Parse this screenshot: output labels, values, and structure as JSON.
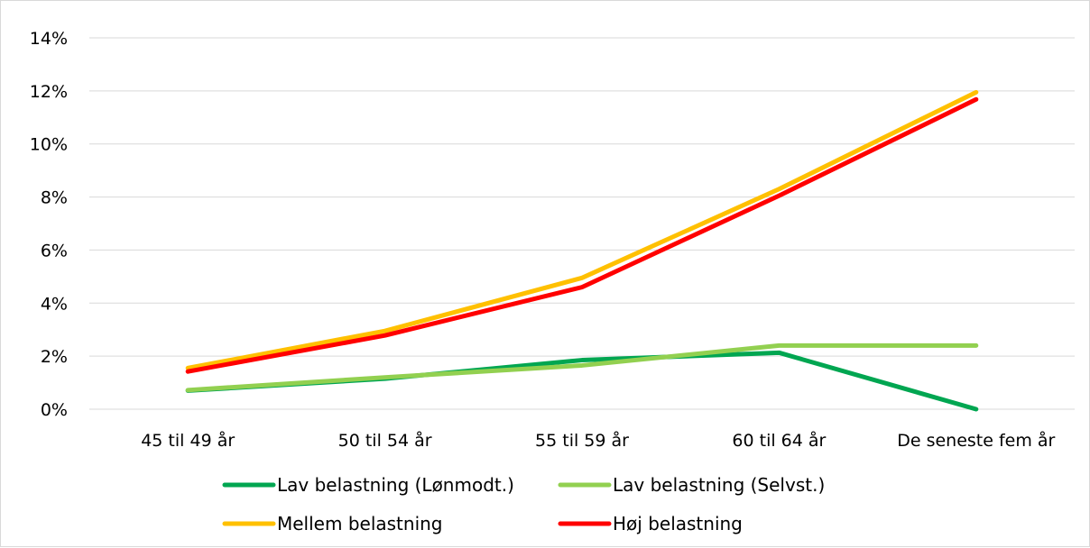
{
  "chart_data": {
    "type": "line",
    "categories": [
      "45 til 49 år",
      "50 til 54 år",
      "55 til 59 år",
      "60 til 64 år",
      "De seneste fem år"
    ],
    "ylim": [
      0,
      0.14
    ],
    "ytick_values": [
      0,
      0.02,
      0.04,
      0.06,
      0.08,
      0.1,
      0.12,
      0.14
    ],
    "ytick_labels": [
      "0%",
      "2%",
      "4%",
      "6%",
      "8%",
      "10%",
      "12%",
      "14%"
    ],
    "grid": true,
    "legend_position": "bottom",
    "series": [
      {
        "name": "Lav belastning (Lønmodt.)",
        "color": "#00a651",
        "values": [
          0.007,
          0.0115,
          0.0185,
          0.0213,
          0.0
        ]
      },
      {
        "name": "Lav belastning (Selvst.)",
        "color": "#92d050",
        "values": [
          0.0072,
          0.012,
          0.0165,
          0.024,
          0.024
        ]
      },
      {
        "name": "Mellem belastning",
        "color": "#ffc000",
        "values": [
          0.0155,
          0.0295,
          0.0495,
          0.083,
          0.1195
        ]
      },
      {
        "name": "Høj belastning",
        "color": "#ff0000",
        "values": [
          0.0142,
          0.0278,
          0.046,
          0.0805,
          0.1168
        ]
      }
    ]
  }
}
